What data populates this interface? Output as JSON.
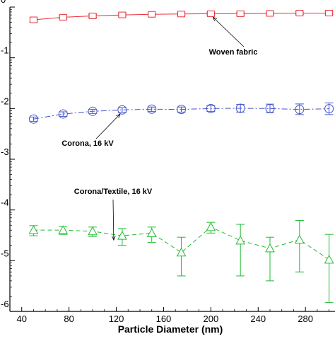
{
  "chart_data": {
    "type": "scatter",
    "xlabel": "Particle Diameter (nm)",
    "ylabel": "",
    "xlim": [
      30,
      305
    ],
    "ylim_log10": [
      -6,
      0
    ],
    "yscale": "log",
    "grid": false,
    "x_ticks": [
      40,
      80,
      120,
      160,
      200,
      240,
      280
    ],
    "x_tick_labels": [
      "40",
      "80",
      "120",
      "160",
      "200",
      "240",
      "280"
    ],
    "y_tick_exponents": [
      0,
      -1,
      -2,
      -3,
      -4,
      -5,
      -6
    ],
    "y_tick_labels": [
      "0",
      "-1",
      "-2",
      "-3",
      "-4",
      "-5",
      "-6"
    ],
    "x": [
      50,
      75,
      100,
      125,
      150,
      175,
      200,
      225,
      250,
      275,
      300
    ],
    "series": [
      {
        "name": "Woven fabric",
        "marker": "square",
        "line": "solid",
        "color": "#e8303a",
        "values": [
          0.56,
          0.63,
          0.67,
          0.7,
          0.72,
          0.73,
          0.74,
          0.74,
          0.75,
          0.76,
          0.76
        ],
        "err_low": [
          0.51,
          0.59,
          0.63,
          0.66,
          0.68,
          0.69,
          0.7,
          0.7,
          0.71,
          0.72,
          0.72
        ],
        "err_high": [
          0.61,
          0.67,
          0.71,
          0.74,
          0.76,
          0.77,
          0.78,
          0.78,
          0.79,
          0.8,
          0.8
        ]
      },
      {
        "name": "Corona, 16 kV",
        "marker": "circle",
        "line": "dashdot",
        "color": "#4455cc",
        "values": [
          0.0062,
          0.0078,
          0.0088,
          0.0094,
          0.0097,
          0.0096,
          0.01,
          0.0101,
          0.01,
          0.0096,
          0.0099
        ],
        "err_low": [
          0.0056,
          0.007,
          0.008,
          0.0084,
          0.0087,
          0.0085,
          0.0087,
          0.0085,
          0.0082,
          0.0076,
          0.0076
        ],
        "err_high": [
          0.0068,
          0.0086,
          0.0096,
          0.0104,
          0.0107,
          0.0107,
          0.0114,
          0.012,
          0.0122,
          0.0123,
          0.0129
        ]
      },
      {
        "name": "Corona/Textile, 16 kV",
        "marker": "triangle",
        "line": "dashed",
        "color": "#22bb33",
        "values": [
          4e-05,
          4e-05,
          3.8e-05,
          3.1e-05,
          3.5e-05,
          1.45e-05,
          4.6e-05,
          2.5e-05,
          1.75e-05,
          2.6e-05,
          1.05e-05
        ],
        "err_low": [
          3.1e-05,
          3.3e-05,
          3e-05,
          2e-05,
          2.3e-05,
          5e-06,
          3.5e-05,
          5e-06,
          4e-06,
          6e-06,
          1.5e-06
        ],
        "err_high": [
          4.9e-05,
          4.7e-05,
          4.6e-05,
          4.3e-05,
          4.6e-05,
          2.9e-05,
          5.7e-05,
          5.2e-05,
          2.9e-05,
          6.2e-05,
          3.3e-05
        ]
      }
    ],
    "annotations": [
      {
        "text": "Woven fabric",
        "series": 0,
        "point_index": 6
      },
      {
        "text": "Corona, 16 kV",
        "series": 1,
        "point_index": 3
      },
      {
        "text": "Corona/Textile, 16 kV",
        "series": 2,
        "point_index": 3
      }
    ]
  }
}
